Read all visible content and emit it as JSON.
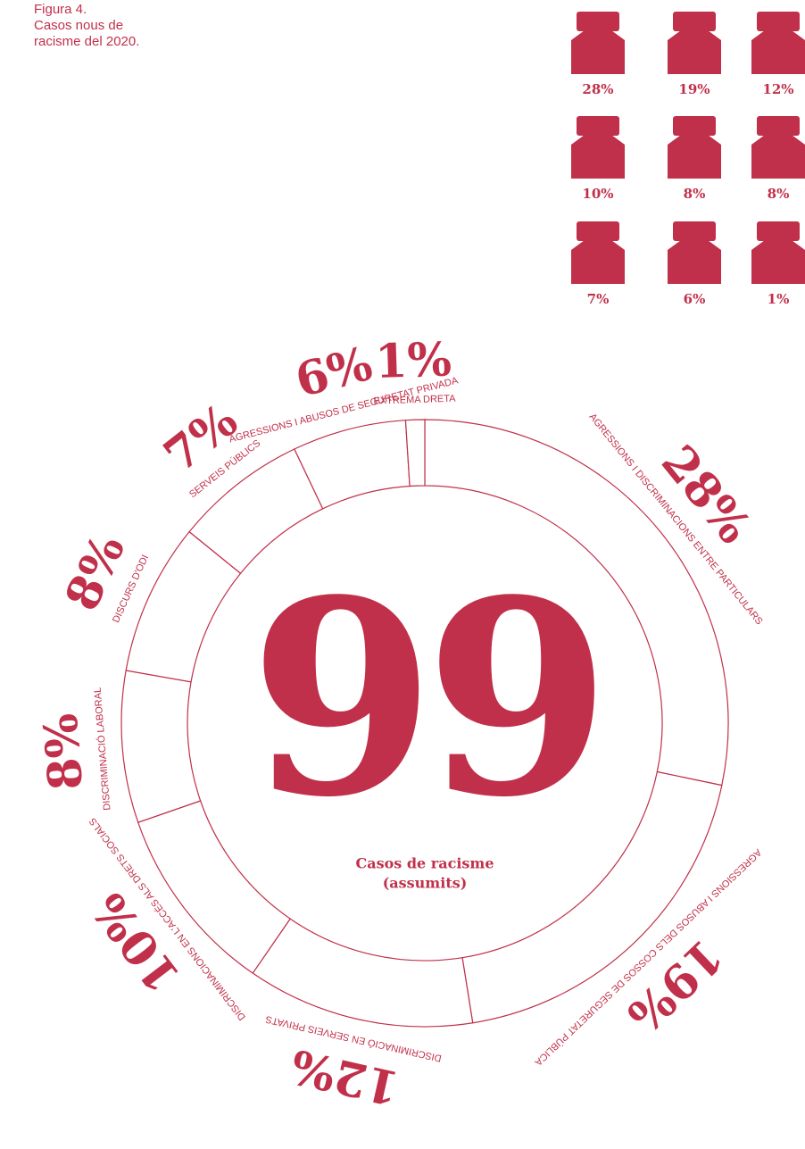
{
  "chart_data": {
    "type": "donut",
    "title": [
      "Figura 4.",
      "Casos nous de",
      "racisme del 2020."
    ],
    "center_value": 99,
    "center_caption": [
      "Casos de racisme",
      "(assumits)"
    ],
    "color": "#c1304a",
    "categories": [
      "AGRESSIONS I DISCRIMINACIONS ENTRE PARTICULARS",
      "AGRESSIONS I ABUSOS DELS COSSOS DE SEGURETAT PÚBLICA",
      "DISCRIMINACIÓ EN SERVEIS PRIVATS",
      "DISCRIMINACIONS EN L'ACCÉS ALS DRETS SOCIALS",
      "DISCRIMINACIÓ LABORAL",
      "DISCURS D'ODI",
      "SERVEIS PÚBLICS",
      "AGRESSIONS I ABUSOS DE SEGURETAT PRIVADA",
      "EXTREMA DRETA"
    ],
    "values": [
      28,
      19,
      12,
      10,
      8,
      8,
      7,
      6,
      1
    ],
    "value_labels": [
      "28%",
      "19%",
      "12%",
      "10%",
      "8%",
      "8%",
      "7%",
      "6%",
      "1%"
    ]
  }
}
